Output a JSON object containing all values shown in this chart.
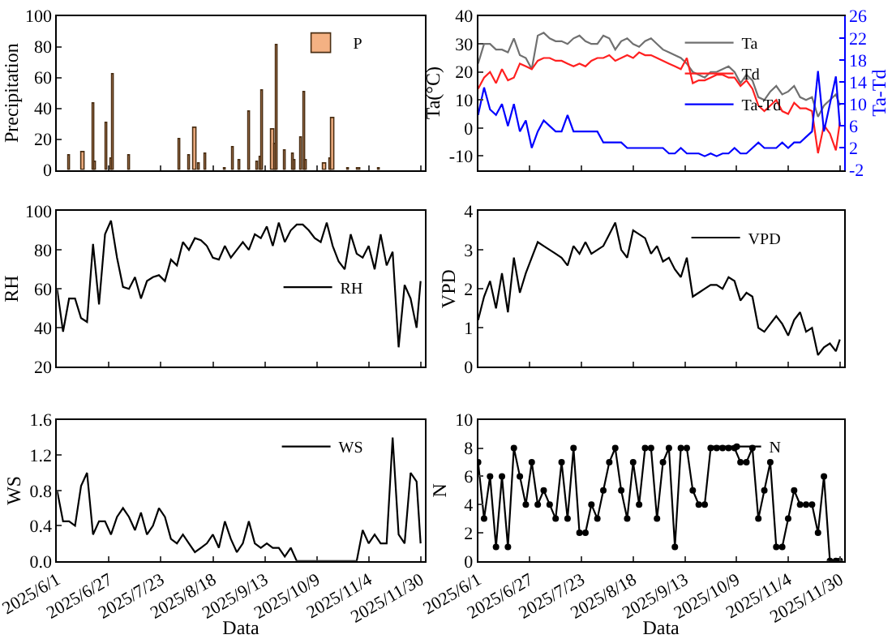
{
  "chart_data": [
    {
      "type": "bar",
      "ylabel": "Precipitation",
      "ylim": [
        0,
        100
      ],
      "yticks": [
        0,
        20,
        40,
        60,
        80,
        100
      ],
      "xlim": [
        "2025-06-01",
        "2025-12-02"
      ],
      "tick_labels": "y",
      "legend": "top right",
      "xticks": [
        {
          "value": "2025-06-01",
          "label": null
        },
        {
          "value": "2025-06-27",
          "label": null
        },
        {
          "value": "2025-07-23",
          "label": null
        },
        {
          "value": "2025-08-18",
          "label": null
        },
        {
          "value": "2025-09-13",
          "label": null
        },
        {
          "value": "2025-10-09",
          "label": null
        },
        {
          "value": "2025-11-04",
          "label": null
        },
        {
          "value": "2025-11-30",
          "label": null
        }
      ],
      "x": [
        "2025-06-07",
        "2025-06-14",
        "2025-06-19",
        "2025-06-20",
        "2025-06-26",
        "2025-06-28",
        "2025-06-29",
        "2025-07-07",
        "2025-08-01",
        "2025-08-06",
        "2025-08-09",
        "2025-08-11",
        "2025-08-14",
        "2025-08-24",
        "2025-08-28",
        "2025-08-31",
        "2025-09-05",
        "2025-09-09",
        "2025-09-11",
        "2025-09-12",
        "2025-09-17",
        "2025-09-18",
        "2025-09-19",
        "2025-09-23",
        "2025-09-27",
        "2025-09-28",
        "2025-10-01",
        "2025-10-03",
        "2025-10-04",
        "2025-10-13",
        "2025-10-16",
        "2025-10-17",
        "2025-10-25",
        "2025-10-30",
        "2025-11-09"
      ],
      "series": [
        {
          "name": "P",
          "color": "#f4b183",
          "values": [
            9,
            12,
            43,
            5,
            31,
            7,
            62,
            9,
            20,
            9,
            27,
            4,
            10,
            1,
            15,
            6,
            38,
            5,
            8,
            52,
            26,
            17,
            81,
            13,
            10,
            6,
            21,
            51,
            6,
            4,
            7,
            34,
            1,
            1,
            1
          ]
        }
      ]
    },
    {
      "type": "line",
      "ylabel": "Ta(°C)",
      "y2label": "Ta-Td",
      "ylim": [
        -15,
        40
      ],
      "yticks": [
        -10,
        0,
        10,
        20,
        30,
        40
      ],
      "y2lim": [
        -2,
        26
      ],
      "y2ticks": [
        -2,
        2,
        6,
        10,
        14,
        18,
        22,
        26
      ],
      "xlim": [
        "2025-06-01",
        "2025-12-02"
      ],
      "tick_labels": "y",
      "legend": "top right",
      "xticks": [
        {
          "value": "2025-06-01",
          "label": null
        },
        {
          "value": "2025-06-27",
          "label": null
        },
        {
          "value": "2025-07-23",
          "label": null
        },
        {
          "value": "2025-08-18",
          "label": null
        },
        {
          "value": "2025-09-13",
          "label": null
        },
        {
          "value": "2025-10-09",
          "label": null
        },
        {
          "value": "2025-11-04",
          "label": null
        },
        {
          "value": "2025-11-30",
          "label": null
        }
      ],
      "x": [
        "2025-06-01",
        "2025-06-04",
        "2025-06-07",
        "2025-06-10",
        "2025-06-13",
        "2025-06-16",
        "2025-06-19",
        "2025-06-22",
        "2025-06-25",
        "2025-06-28",
        "2025-07-01",
        "2025-07-04",
        "2025-07-07",
        "2025-07-10",
        "2025-07-13",
        "2025-07-16",
        "2025-07-19",
        "2025-07-22",
        "2025-07-25",
        "2025-07-28",
        "2025-07-31",
        "2025-08-03",
        "2025-08-06",
        "2025-08-09",
        "2025-08-12",
        "2025-08-15",
        "2025-08-18",
        "2025-08-21",
        "2025-08-24",
        "2025-08-27",
        "2025-08-30",
        "2025-09-02",
        "2025-09-05",
        "2025-09-08",
        "2025-09-11",
        "2025-09-14",
        "2025-09-17",
        "2025-09-20",
        "2025-09-23",
        "2025-09-26",
        "2025-09-29",
        "2025-10-02",
        "2025-10-05",
        "2025-10-08",
        "2025-10-11",
        "2025-10-14",
        "2025-10-17",
        "2025-10-20",
        "2025-10-23",
        "2025-10-26",
        "2025-10-29",
        "2025-11-01",
        "2025-11-04",
        "2025-11-07",
        "2025-11-10",
        "2025-11-13",
        "2025-11-16",
        "2025-11-19",
        "2025-11-22",
        "2025-11-25",
        "2025-11-28",
        "2025-11-30"
      ],
      "series": [
        {
          "name": "Ta",
          "color": "#707070",
          "values": [
            23,
            30,
            30,
            28,
            28,
            27,
            32,
            26,
            25,
            21,
            33,
            34,
            32,
            31,
            31,
            30,
            32,
            33,
            31,
            30,
            30,
            33,
            32,
            28,
            31,
            32,
            30,
            29,
            31,
            32,
            30,
            28,
            27,
            26,
            25,
            23,
            20,
            19,
            18,
            20,
            20,
            21,
            22,
            20,
            16,
            19,
            17,
            11,
            10,
            13,
            15,
            12,
            13,
            15,
            11,
            10,
            11,
            4,
            8,
            10,
            12,
            8
          ]
        },
        {
          "name": "Td",
          "color": "#ff2020",
          "values": [
            14,
            18,
            20,
            16,
            21,
            17,
            18,
            23,
            22,
            21,
            24,
            25,
            25,
            24,
            24,
            23,
            22,
            23,
            22,
            24,
            25,
            25,
            26,
            24,
            25,
            26,
            25,
            27,
            26,
            26,
            25,
            24,
            23,
            22,
            21,
            25,
            16,
            17,
            17,
            18,
            19,
            19,
            18,
            18,
            15,
            17,
            14,
            8,
            6,
            8,
            10,
            6,
            5,
            9,
            7,
            7,
            6,
            -9,
            1,
            -2,
            -8,
            2
          ]
        },
        {
          "name": "Ta-Td",
          "color": "#0000ff",
          "axis": "y2",
          "values": [
            8,
            13,
            9,
            8,
            10,
            6,
            10,
            5,
            7,
            2,
            5,
            7,
            6,
            5,
            5,
            8,
            5,
            5,
            5,
            5,
            5,
            3,
            3,
            3,
            3,
            2,
            2,
            2,
            2,
            2,
            2,
            2,
            1,
            1,
            2,
            1,
            1,
            1,
            0.5,
            1,
            0.5,
            1,
            1,
            2,
            1,
            1,
            2,
            3,
            2,
            2,
            2,
            3,
            2,
            3,
            3,
            4,
            5,
            16,
            5,
            10,
            15,
            6
          ]
        }
      ]
    },
    {
      "type": "line",
      "ylabel": "RH",
      "ylim": [
        20,
        100
      ],
      "yticks": [
        20,
        40,
        60,
        80,
        100
      ],
      "xlim": [
        "2025-06-01",
        "2025-12-02"
      ],
      "tick_labels": "y",
      "legend": "right",
      "xticks": [
        {
          "value": "2025-06-01",
          "label": null
        },
        {
          "value": "2025-06-27",
          "label": null
        },
        {
          "value": "2025-07-23",
          "label": null
        },
        {
          "value": "2025-08-18",
          "label": null
        },
        {
          "value": "2025-09-13",
          "label": null
        },
        {
          "value": "2025-10-09",
          "label": null
        },
        {
          "value": "2025-11-04",
          "label": null
        },
        {
          "value": "2025-11-30",
          "label": null
        }
      ],
      "x": [
        "2025-06-01",
        "2025-06-04",
        "2025-06-07",
        "2025-06-10",
        "2025-06-13",
        "2025-06-16",
        "2025-06-19",
        "2025-06-22",
        "2025-06-25",
        "2025-06-28",
        "2025-07-01",
        "2025-07-04",
        "2025-07-07",
        "2025-07-10",
        "2025-07-13",
        "2025-07-16",
        "2025-07-19",
        "2025-07-22",
        "2025-07-25",
        "2025-07-28",
        "2025-07-31",
        "2025-08-03",
        "2025-08-06",
        "2025-08-09",
        "2025-08-12",
        "2025-08-15",
        "2025-08-18",
        "2025-08-21",
        "2025-08-24",
        "2025-08-27",
        "2025-08-30",
        "2025-09-02",
        "2025-09-05",
        "2025-09-08",
        "2025-09-11",
        "2025-09-14",
        "2025-09-17",
        "2025-09-20",
        "2025-09-23",
        "2025-09-26",
        "2025-09-29",
        "2025-10-02",
        "2025-10-05",
        "2025-10-08",
        "2025-10-11",
        "2025-10-14",
        "2025-10-17",
        "2025-10-20",
        "2025-10-23",
        "2025-10-26",
        "2025-10-29",
        "2025-11-01",
        "2025-11-04",
        "2025-11-07",
        "2025-11-10",
        "2025-11-13",
        "2025-11-16",
        "2025-11-19",
        "2025-11-22",
        "2025-11-25",
        "2025-11-28",
        "2025-11-30"
      ],
      "series": [
        {
          "name": "RH",
          "color": "#000000",
          "values": [
            60,
            38,
            55,
            55,
            45,
            43,
            83,
            52,
            88,
            95,
            76,
            61,
            60,
            66,
            55,
            64,
            66,
            67,
            64,
            75,
            72,
            84,
            80,
            86,
            85,
            82,
            76,
            75,
            82,
            76,
            80,
            84,
            80,
            88,
            86,
            92,
            82,
            94,
            84,
            90,
            93,
            93,
            90,
            86,
            84,
            94,
            82,
            74,
            70,
            88,
            78,
            76,
            82,
            70,
            88,
            72,
            79,
            30,
            62,
            55,
            40,
            64
          ]
        }
      ]
    },
    {
      "type": "line",
      "ylabel": "VPD",
      "ylim": [
        0,
        4
      ],
      "yticks": [
        0,
        1,
        2,
        3,
        4
      ],
      "xlim": [
        "2025-06-01",
        "2025-12-02"
      ],
      "tick_labels": "y",
      "legend": "top right",
      "xticks": [
        {
          "value": "2025-06-01",
          "label": null
        },
        {
          "value": "2025-06-27",
          "label": null
        },
        {
          "value": "2025-07-23",
          "label": null
        },
        {
          "value": "2025-08-18",
          "label": null
        },
        {
          "value": "2025-09-13",
          "label": null
        },
        {
          "value": "2025-10-09",
          "label": null
        },
        {
          "value": "2025-11-04",
          "label": null
        },
        {
          "value": "2025-11-30",
          "label": null
        }
      ],
      "x": [
        "2025-06-01",
        "2025-06-04",
        "2025-06-07",
        "2025-06-10",
        "2025-06-13",
        "2025-06-16",
        "2025-06-19",
        "2025-06-22",
        "2025-06-25",
        "2025-06-28",
        "2025-07-01",
        "2025-07-04",
        "2025-07-07",
        "2025-07-10",
        "2025-07-13",
        "2025-07-16",
        "2025-07-19",
        "2025-07-22",
        "2025-07-25",
        "2025-07-28",
        "2025-07-31",
        "2025-08-03",
        "2025-08-06",
        "2025-08-09",
        "2025-08-12",
        "2025-08-15",
        "2025-08-18",
        "2025-08-21",
        "2025-08-24",
        "2025-08-27",
        "2025-08-30",
        "2025-09-02",
        "2025-09-05",
        "2025-09-08",
        "2025-09-11",
        "2025-09-14",
        "2025-09-17",
        "2025-09-20",
        "2025-09-23",
        "2025-09-26",
        "2025-09-29",
        "2025-10-02",
        "2025-10-05",
        "2025-10-08",
        "2025-10-11",
        "2025-10-14",
        "2025-10-17",
        "2025-10-20",
        "2025-10-23",
        "2025-10-26",
        "2025-10-29",
        "2025-11-01",
        "2025-11-04",
        "2025-11-07",
        "2025-11-10",
        "2025-11-13",
        "2025-11-16",
        "2025-11-19",
        "2025-11-22",
        "2025-11-25",
        "2025-11-28",
        "2025-11-30"
      ],
      "series": [
        {
          "name": "VPD",
          "color": "#000000",
          "values": [
            1.2,
            1.8,
            2.2,
            1.5,
            2.4,
            1.4,
            2.8,
            1.9,
            2.4,
            2.8,
            3.2,
            3.1,
            3.0,
            2.9,
            2.8,
            2.6,
            3.1,
            2.9,
            3.2,
            2.9,
            3.0,
            3.1,
            3.4,
            3.7,
            3.0,
            2.8,
            3.5,
            3.4,
            3.3,
            2.9,
            3.1,
            2.7,
            2.8,
            2.5,
            2.3,
            2.8,
            1.8,
            1.9,
            2.0,
            2.1,
            2.1,
            2.0,
            2.3,
            2.2,
            1.7,
            1.9,
            1.8,
            1.0,
            0.9,
            1.1,
            1.3,
            1.1,
            0.8,
            1.2,
            1.4,
            0.9,
            1.0,
            0.3,
            0.5,
            0.6,
            0.4,
            0.7
          ]
        }
      ]
    },
    {
      "type": "line",
      "ylabel": "WS",
      "xlabel": "Data",
      "ylim": [
        0,
        1.6
      ],
      "yticks": [
        {
          "value": 0,
          "label": "0.0"
        },
        0.4,
        0.8,
        1.2,
        1.6
      ],
      "xlim": [
        "2025-06-01",
        "2025-12-02"
      ],
      "legend": "top right",
      "xticks": [
        {
          "value": "2025-06-01",
          "label": "2025/6/1"
        },
        {
          "value": "2025-06-27",
          "label": "2025/6/27"
        },
        {
          "value": "2025-07-23",
          "label": "2025/7/23"
        },
        {
          "value": "2025-08-18",
          "label": "2025/8/18"
        },
        {
          "value": "2025-09-13",
          "label": "2025/9/13"
        },
        {
          "value": "2025-10-09",
          "label": "2025/10/9"
        },
        {
          "value": "2025-11-04",
          "label": "2025/11/4"
        },
        {
          "value": "2025-11-30",
          "label": "2025/11/30"
        }
      ],
      "x": [
        "2025-06-01",
        "2025-06-04",
        "2025-06-07",
        "2025-06-10",
        "2025-06-13",
        "2025-06-16",
        "2025-06-19",
        "2025-06-22",
        "2025-06-25",
        "2025-06-28",
        "2025-07-01",
        "2025-07-04",
        "2025-07-07",
        "2025-07-10",
        "2025-07-13",
        "2025-07-16",
        "2025-07-19",
        "2025-07-22",
        "2025-07-25",
        "2025-07-28",
        "2025-07-31",
        "2025-08-03",
        "2025-08-06",
        "2025-08-09",
        "2025-08-12",
        "2025-08-15",
        "2025-08-18",
        "2025-08-21",
        "2025-08-24",
        "2025-08-27",
        "2025-08-30",
        "2025-09-02",
        "2025-09-05",
        "2025-09-08",
        "2025-09-11",
        "2025-09-14",
        "2025-09-17",
        "2025-09-20",
        "2025-09-23",
        "2025-09-26",
        "2025-09-29",
        "2025-10-02",
        "2025-10-05",
        "2025-10-08",
        "2025-10-11",
        "2025-10-14",
        "2025-10-17",
        "2025-10-20",
        "2025-10-23",
        "2025-10-26",
        "2025-10-29",
        "2025-11-01",
        "2025-11-04",
        "2025-11-07",
        "2025-11-10",
        "2025-11-13",
        "2025-11-16",
        "2025-11-19",
        "2025-11-22",
        "2025-11-25",
        "2025-11-28",
        "2025-11-30"
      ],
      "series": [
        {
          "name": "WS",
          "color": "#000000",
          "values": [
            0.8,
            0.45,
            0.45,
            0.4,
            0.85,
            1.0,
            0.3,
            0.45,
            0.45,
            0.3,
            0.5,
            0.6,
            0.5,
            0.35,
            0.55,
            0.3,
            0.4,
            0.6,
            0.5,
            0.25,
            0.2,
            0.3,
            0.2,
            0.1,
            0.15,
            0.2,
            0.3,
            0.15,
            0.45,
            0.25,
            0.1,
            0.2,
            0.45,
            0.2,
            0.15,
            0.2,
            0.15,
            0.15,
            0.05,
            0.15,
            0,
            0,
            0,
            0,
            0,
            0,
            0,
            0,
            0,
            0,
            0,
            0.35,
            0.2,
            0.3,
            0.2,
            0.2,
            1.4,
            0.3,
            0.2,
            1.0,
            0.9,
            0.2
          ]
        }
      ]
    },
    {
      "type": "line",
      "ylabel": "N",
      "xlabel": "Data",
      "ylim": [
        0,
        10
      ],
      "yticks": [
        0,
        2,
        4,
        6,
        8,
        10
      ],
      "xlim": [
        "2025-06-01",
        "2025-12-02"
      ],
      "legend": "top right",
      "marker": "circle",
      "xticks": [
        {
          "value": "2025-06-01",
          "label": "2025/6/1"
        },
        {
          "value": "2025-06-27",
          "label": "2025/6/27"
        },
        {
          "value": "2025-07-23",
          "label": "2025/7/23"
        },
        {
          "value": "2025-08-18",
          "label": "2025/8/18"
        },
        {
          "value": "2025-09-13",
          "label": "2025/9/13"
        },
        {
          "value": "2025-10-09",
          "label": "2025/10/9"
        },
        {
          "value": "2025-11-04",
          "label": "2025/11/4"
        },
        {
          "value": "2025-11-30",
          "label": "2025/11/30"
        }
      ],
      "x": [
        "2025-06-01",
        "2025-06-04",
        "2025-06-07",
        "2025-06-10",
        "2025-06-13",
        "2025-06-16",
        "2025-06-19",
        "2025-06-22",
        "2025-06-25",
        "2025-06-28",
        "2025-07-01",
        "2025-07-04",
        "2025-07-07",
        "2025-07-10",
        "2025-07-13",
        "2025-07-16",
        "2025-07-19",
        "2025-07-22",
        "2025-07-25",
        "2025-07-28",
        "2025-07-31",
        "2025-08-03",
        "2025-08-06",
        "2025-08-09",
        "2025-08-12",
        "2025-08-15",
        "2025-08-18",
        "2025-08-21",
        "2025-08-24",
        "2025-08-27",
        "2025-08-30",
        "2025-09-02",
        "2025-09-05",
        "2025-09-08",
        "2025-09-11",
        "2025-09-14",
        "2025-09-17",
        "2025-09-20",
        "2025-09-23",
        "2025-09-26",
        "2025-09-29",
        "2025-10-02",
        "2025-10-05",
        "2025-10-08",
        "2025-10-11",
        "2025-10-14",
        "2025-10-17",
        "2025-10-20",
        "2025-10-23",
        "2025-10-26",
        "2025-10-29",
        "2025-11-01",
        "2025-11-04",
        "2025-11-07",
        "2025-11-10",
        "2025-11-13",
        "2025-11-16",
        "2025-11-19",
        "2025-11-22",
        "2025-11-25",
        "2025-11-28",
        "2025-11-30"
      ],
      "series": [
        {
          "name": "N",
          "color": "#000000",
          "values": [
            7,
            3,
            6,
            1,
            6,
            1,
            8,
            6,
            4,
            7,
            4,
            5,
            4,
            3,
            7,
            3,
            8,
            2,
            2,
            4,
            3,
            5,
            7,
            8,
            5,
            3,
            7,
            4,
            8,
            8,
            3,
            7,
            8,
            1,
            8,
            8,
            5,
            4,
            4,
            8,
            8,
            8,
            8,
            8,
            7,
            7,
            8,
            3,
            5,
            7,
            1,
            1,
            3,
            5,
            4,
            4,
            4,
            2,
            6,
            0,
            0,
            0
          ]
        }
      ]
    }
  ]
}
